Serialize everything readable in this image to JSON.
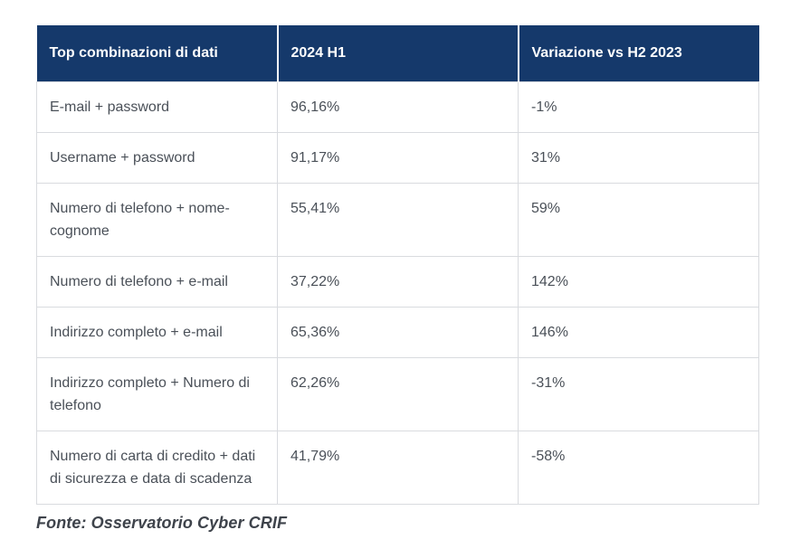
{
  "colors": {
    "header_bg": "#15396B",
    "header_text": "#FFFFFF",
    "body_text": "#4A5058",
    "border": "#D9DBDF",
    "source_text": "#3E434B",
    "page_bg": "#FFFFFF"
  },
  "table": {
    "headers": [
      "Top combinazioni di dati",
      "2024 H1",
      "Variazione vs H2 2023"
    ],
    "rows": [
      {
        "combo": "E-mail + password",
        "h1_2024": "96,16%",
        "variation": "-1%"
      },
      {
        "combo": "Username + password",
        "h1_2024": "91,17%",
        "variation": "31%"
      },
      {
        "combo": "Numero di telefono + nome-cognome",
        "h1_2024": "55,41%",
        "variation": "59%"
      },
      {
        "combo": "Numero di telefono + e-mail",
        "h1_2024": "37,22%",
        "variation": "142%"
      },
      {
        "combo": "Indirizzo completo + e-mail",
        "h1_2024": "65,36%",
        "variation": "146%"
      },
      {
        "combo": "Indirizzo completo + Numero di telefono",
        "h1_2024": "62,26%",
        "variation": "-31%"
      },
      {
        "combo": "Numero di carta di credito + dati di sicurezza e data di scadenza",
        "h1_2024": "41,79%",
        "variation": "-58%"
      }
    ]
  },
  "source": "Fonte: Osservatorio Cyber CRIF",
  "chart_data": {
    "type": "table",
    "title": "Top combinazioni di dati",
    "columns": [
      "Top combinazioni di dati",
      "2024 H1",
      "Variazione vs H2 2023"
    ],
    "rows": [
      [
        "E-mail + password",
        "96,16%",
        "-1%"
      ],
      [
        "Username + password",
        "91,17%",
        "31%"
      ],
      [
        "Numero di telefono + nome-cognome",
        "55,41%",
        "59%"
      ],
      [
        "Numero di telefono + e-mail",
        "37,22%",
        "142%"
      ],
      [
        "Indirizzo completo + e-mail",
        "65,36%",
        "146%"
      ],
      [
        "Indirizzo completo + Numero di telefono",
        "62,26%",
        "-31%"
      ],
      [
        "Numero di carta di credito + dati di sicurezza e data di scadenza",
        "41,79%",
        "-58%"
      ]
    ],
    "source": "Fonte: Osservatorio Cyber CRIF"
  }
}
